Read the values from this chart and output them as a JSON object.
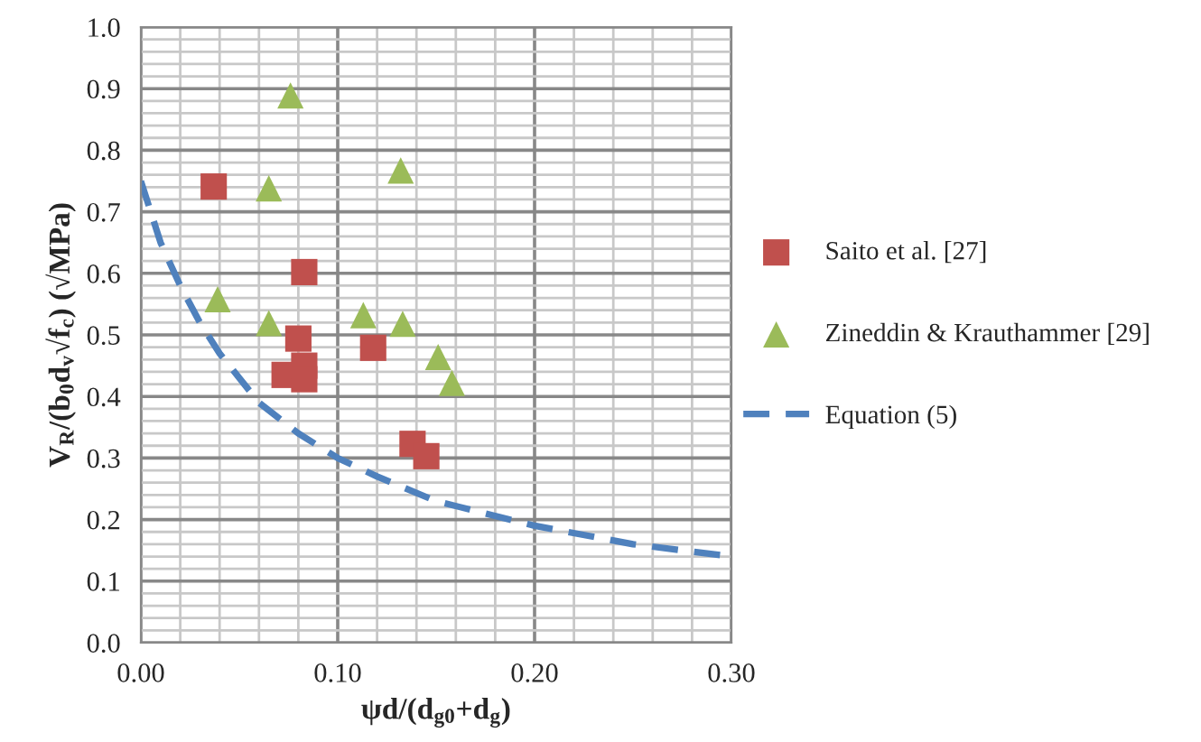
{
  "chart_data": {
    "type": "scatter",
    "xlabel": "ψd/(d$_{g0}$+d$_{g}$)",
    "ylabel": "V$_{R}$/(b$_{0}$d$_{v}$√f$_{c}$) (√MPa)",
    "xlim": [
      0,
      0.3
    ],
    "xticks": [
      {
        "value": 0,
        "label": "0.00"
      },
      {
        "value": 0.1,
        "label": "0.10"
      },
      {
        "value": 0.2,
        "label": "0.20"
      },
      {
        "value": 0.3,
        "label": "0.30"
      }
    ],
    "ylim": [
      0,
      1
    ],
    "yticks": [
      {
        "value": 0,
        "label": "0.0"
      },
      {
        "value": 0.1,
        "label": "0.1"
      },
      {
        "value": 0.2,
        "label": "0.2"
      },
      {
        "value": 0.3,
        "label": "0.3"
      },
      {
        "value": 0.4,
        "label": "0.4"
      },
      {
        "value": 0.5,
        "label": "0.5"
      },
      {
        "value": 0.6,
        "label": "0.6"
      },
      {
        "value": 0.7,
        "label": "0.7"
      },
      {
        "value": 0.8,
        "label": "0.8"
      },
      {
        "value": 0.9,
        "label": "0.9"
      },
      {
        "value": 1,
        "label": "1.0"
      }
    ],
    "grid": true,
    "legend": "right",
    "series": [
      {
        "name": "Saito et al. [27]",
        "marker": "square",
        "color": "#c0504d",
        "x": [
          0.037,
          0.083,
          0.08,
          0.073,
          0.083,
          0.083,
          0.118,
          0.138,
          0.145
        ],
        "values": [
          0.741,
          0.602,
          0.494,
          0.435,
          0.45,
          0.428,
          0.479,
          0.323,
          0.303
        ]
      },
      {
        "name": "Zineddin & Krauthammer [29]",
        "marker": "triangle",
        "color": "#9bbb59",
        "x": [
          0.076,
          0.132,
          0.065,
          0.039,
          0.065,
          0.113,
          0.133,
          0.151,
          0.158
        ],
        "values": [
          0.889,
          0.767,
          0.738,
          0.558,
          0.519,
          0.532,
          0.518,
          0.464,
          0.422
        ]
      },
      {
        "name": "Equation (5)",
        "type": "line",
        "marker": "none",
        "line_style": "dashed",
        "color": "#4f81bd",
        "x": [
          0,
          0.01,
          0.02,
          0.03,
          0.04,
          0.05,
          0.06,
          0.08,
          0.1,
          0.12,
          0.15,
          0.2,
          0.25,
          0.3
        ],
        "values": [
          0.75,
          0.65,
          0.58,
          0.52,
          0.47,
          0.43,
          0.39,
          0.34,
          0.3,
          0.27,
          0.23,
          0.19,
          0.16,
          0.14
        ]
      }
    ]
  }
}
